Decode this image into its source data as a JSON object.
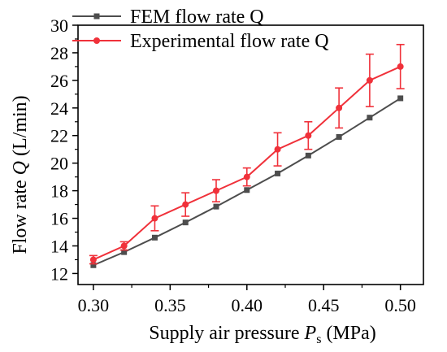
{
  "chart_data": {
    "type": "line",
    "xlabel": {
      "prefix": "Supply air pressure ",
      "symbol": "P",
      "subscript": "s",
      "unit": " (MPa)"
    },
    "ylabel": {
      "prefix": "Flow rate ",
      "symbol": "Q",
      "unit": "  (L/min)"
    },
    "xlim": [
      0.29,
      0.515
    ],
    "ylim": [
      11.2,
      30
    ],
    "xticks": [
      "0.30",
      "0.35",
      "0.40",
      "0.45",
      "0.50"
    ],
    "yticks": [
      "12",
      "14",
      "16",
      "18",
      "20",
      "22",
      "24",
      "26",
      "28",
      "30"
    ],
    "x": [
      0.3,
      0.32,
      0.34,
      0.36,
      0.38,
      0.4,
      0.42,
      0.44,
      0.46,
      0.48,
      0.5
    ],
    "series": [
      {
        "name": "FEM flow rate Q",
        "color": "#4d4d4d",
        "marker": "square",
        "values": [
          12.6,
          13.55,
          14.6,
          15.7,
          16.85,
          18.05,
          19.25,
          20.55,
          21.9,
          23.3,
          24.7
        ]
      },
      {
        "name": "Experimental flow rate Q",
        "color": "#f0313a",
        "marker": "circle",
        "values": [
          13.0,
          14.0,
          16.0,
          17.0,
          18.0,
          19.0,
          21.0,
          22.0,
          24.0,
          26.0,
          27.0
        ],
        "error": [
          0.3,
          0.3,
          0.9,
          0.85,
          0.8,
          0.65,
          1.2,
          1.0,
          1.45,
          1.9,
          1.6
        ]
      }
    ],
    "legend": "top-left",
    "grid": false
  }
}
